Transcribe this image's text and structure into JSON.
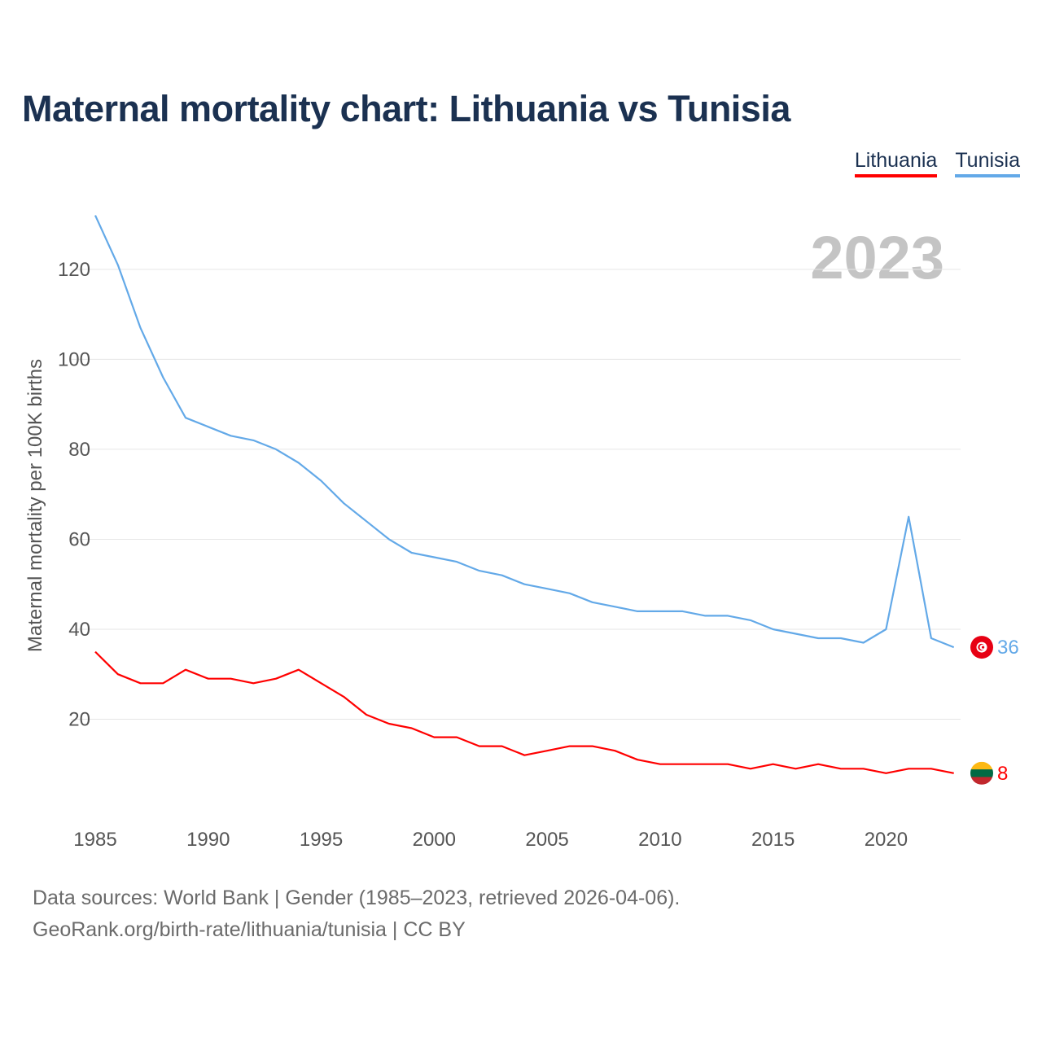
{
  "page": {
    "title": "Maternal mortality chart: Lithuania vs Tunisia",
    "year_label": "2023",
    "footer_line1": "Data sources: World Bank | Gender (1985–2023, retrieved 2026-04-06).",
    "footer_line2": "GeoRank.org/birth-rate/lithuania/tunisia | CC BY"
  },
  "legend": {
    "items": [
      {
        "label": "Lithuania",
        "color": "#ff0000"
      },
      {
        "label": "Tunisia",
        "color": "#63a9e8"
      }
    ]
  },
  "chart_data": {
    "type": "line",
    "title": "Maternal mortality chart: Lithuania vs Tunisia",
    "xlabel": "",
    "ylabel": "Maternal mortality per 100K births",
    "x": [
      1985,
      1986,
      1987,
      1988,
      1989,
      1990,
      1991,
      1992,
      1993,
      1994,
      1995,
      1996,
      1997,
      1998,
      1999,
      2000,
      2001,
      2002,
      2003,
      2004,
      2005,
      2006,
      2007,
      2008,
      2009,
      2010,
      2011,
      2012,
      2013,
      2014,
      2015,
      2016,
      2017,
      2018,
      2019,
      2020,
      2021,
      2022,
      2023
    ],
    "xlim": [
      1985,
      2023.3
    ],
    "ylim": [
      0,
      135
    ],
    "xticks": [
      1985,
      1990,
      1995,
      2000,
      2005,
      2010,
      2015,
      2020
    ],
    "yticks": [
      20,
      40,
      60,
      80,
      100,
      120
    ],
    "grid": true,
    "series": [
      {
        "name": "Tunisia",
        "color": "#63a9e8",
        "end_label": "36",
        "flag": "tunisia-flag-icon",
        "values": [
          132,
          121,
          107,
          96,
          87,
          85,
          83,
          82,
          80,
          77,
          73,
          68,
          64,
          60,
          57,
          56,
          55,
          53,
          52,
          50,
          49,
          48,
          46,
          45,
          44,
          44,
          44,
          43,
          43,
          42,
          40,
          39,
          38,
          38,
          37,
          40,
          65,
          38,
          36
        ]
      },
      {
        "name": "Lithuania",
        "color": "#ff0000",
        "end_label": "8",
        "flag": "lithuania-flag-icon",
        "values": [
          35,
          30,
          28,
          28,
          31,
          29,
          29,
          28,
          29,
          31,
          28,
          25,
          21,
          19,
          18,
          16,
          16,
          14,
          14,
          12,
          13,
          14,
          14,
          13,
          11,
          10,
          10,
          10,
          10,
          9,
          10,
          9,
          10,
          9,
          9,
          8,
          9,
          9,
          8
        ]
      }
    ]
  }
}
